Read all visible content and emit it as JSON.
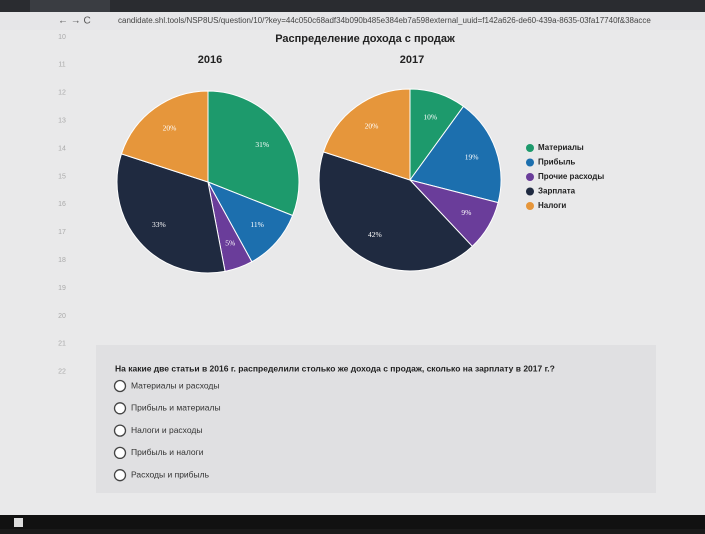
{
  "browser": {
    "url": "candidate.shl.tools/NSP8US/question/10/?key=44c050c68adf34b090b485e384eb7a598external_uuid=f142a626-de60-439a-8635-03fa17740f&38acce"
  },
  "row_numbers": [
    "10",
    "11",
    "12",
    "13",
    "14",
    "15",
    "16",
    "17",
    "18",
    "19",
    "20",
    "21",
    "22"
  ],
  "figure_title": "Распределение дохода с продаж",
  "chart_data": [
    {
      "type": "pie",
      "title": "2016",
      "categories": [
        "Материалы",
        "Прибыль",
        "Прочие расходы",
        "Зарплата",
        "Налоги"
      ],
      "values": [
        31,
        11,
        5,
        33,
        20
      ],
      "value_labels": [
        "31%",
        "11%",
        "5%",
        "33%",
        "20%"
      ],
      "colors": [
        "#1d9a6c",
        "#1c6fae",
        "#6a3d9a",
        "#1f2a40",
        "#e6963b"
      ]
    },
    {
      "type": "pie",
      "title": "2017",
      "categories": [
        "Материалы",
        "Прибыль",
        "Прочие расходы",
        "Зарплата",
        "Налоги"
      ],
      "values": [
        10,
        19,
        9,
        42,
        20
      ],
      "value_labels": [
        "10%",
        "19%",
        "9%",
        "42%",
        "20%"
      ],
      "colors": [
        "#1d9a6c",
        "#1c6fae",
        "#6a3d9a",
        "#1f2a40",
        "#e6963b"
      ]
    }
  ],
  "question": {
    "text": "На какие две статьи в 2016 г. распределили столько же дохода с продаж, сколько на зарплату в 2017 г.?",
    "options": [
      "Материалы и расходы",
      "Прибыль и материалы",
      "Налоги и расходы",
      "Прибыль и налоги",
      "Расходы и прибыль"
    ]
  }
}
